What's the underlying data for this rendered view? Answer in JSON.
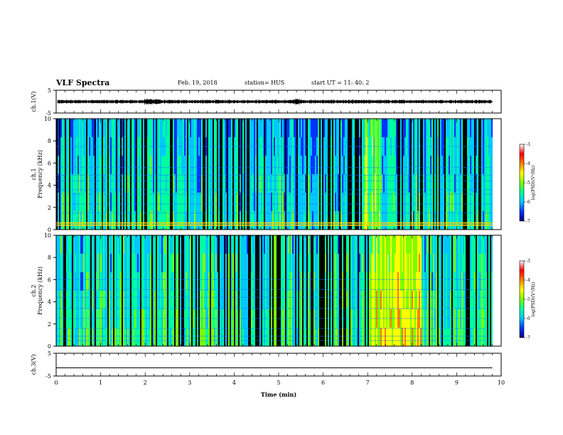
{
  "header": {
    "title": "VLF Spectra",
    "date": "Feb. 19, 2018",
    "station": "station= HUS",
    "start": "start  UT =   11: 40: 2"
  },
  "colors": {
    "spectrogram_palette": [
      "#00007a",
      "#0033ff",
      "#00c8ff",
      "#00ffa0",
      "#7cff00",
      "#ffff00",
      "#ff8000",
      "#ff0000",
      "#ffffff"
    ],
    "background_dark": "#000518"
  },
  "chart_data": [
    {
      "type": "line",
      "panel": "ch1-waveform",
      "ylabel": "ch.1(V)",
      "ylim": [
        -5,
        5
      ],
      "y_ticks": [
        "5",
        "-5"
      ],
      "xlim": [
        0,
        10
      ],
      "baseline_V": 0,
      "noise_amplitude_V": 0.6,
      "x_tick_labels": [
        "0",
        "1",
        "2",
        "3",
        "4",
        "5",
        "6",
        "7",
        "8",
        "9",
        "10"
      ]
    },
    {
      "type": "heatmap",
      "panel": "ch1-spectrogram",
      "ylabel_channel": "ch.1",
      "ylabel": "Frequency (kHz)",
      "ylim": [
        0,
        10
      ],
      "y_ticks": [
        "0",
        "2",
        "4",
        "6",
        "8",
        "10"
      ],
      "xlim": [
        0,
        9.8
      ],
      "colorbar": {
        "label": "log(PSD)(V²/Hz)",
        "range": [
          -7,
          -3
        ],
        "ticks": [
          "-3",
          "-4",
          "-5",
          "-6",
          "-7"
        ]
      },
      "bright_band_min": [
        6.9,
        7.3
      ]
    },
    {
      "type": "heatmap",
      "panel": "ch2-spectrogram",
      "ylabel_channel": "ch.2",
      "ylabel": "Frequency (kHz)",
      "ylim": [
        0,
        10
      ],
      "y_ticks": [
        "0",
        "2",
        "4",
        "6",
        "8",
        "10"
      ],
      "xlim": [
        0,
        9.8
      ],
      "colorbar": {
        "label": "log(PSD)(V²/Hz)",
        "range": [
          -7,
          -3
        ],
        "ticks": [
          "-3",
          "-4",
          "-5",
          "-6",
          "-7"
        ]
      },
      "bright_band_min": [
        7.0,
        8.2
      ]
    },
    {
      "type": "line",
      "panel": "ch3-waveform",
      "ylabel": "ch.3(V)",
      "ylim": [
        -5,
        5
      ],
      "y_ticks": [
        "5",
        "-5"
      ],
      "xlim": [
        0,
        10
      ],
      "x": [
        0,
        9.8
      ],
      "y": [
        -1.4,
        -1.4
      ],
      "xlabel": "Time (min)",
      "x_tick_labels": [
        "0",
        "1",
        "2",
        "3",
        "4",
        "5",
        "6",
        "7",
        "8",
        "9",
        "10"
      ]
    }
  ]
}
